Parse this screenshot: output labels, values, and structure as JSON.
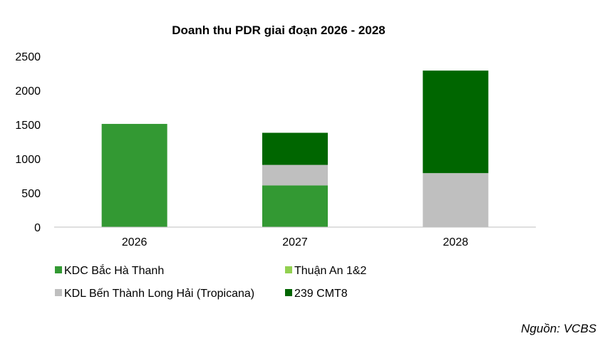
{
  "chart_data": {
    "type": "bar",
    "stacked": true,
    "title": "Doanh thu PDR giai đoạn 2026 - 2028",
    "categories": [
      "2026",
      "2027",
      "2028"
    ],
    "series": [
      {
        "name": "KDC Bắc Hà Thanh",
        "color": "#339933",
        "values": [
          1510,
          610,
          0
        ]
      },
      {
        "name": "Thuận An 1&2",
        "color": "#92d050",
        "values": [
          0,
          0,
          0
        ]
      },
      {
        "name": "KDL Bến Thành Long Hải (Tropicana)",
        "color": "#bfbfbf",
        "values": [
          0,
          300,
          790
        ]
      },
      {
        "name": "239 CMT8",
        "color": "#006600",
        "values": [
          0,
          470,
          1500
        ]
      }
    ],
    "yticks": [
      "0",
      "500",
      "1000",
      "1500",
      "2000",
      "2500"
    ],
    "ylim": [
      0,
      2500
    ],
    "grid": false,
    "legend_position": "bottom"
  },
  "source": "Nguồn: VCBS"
}
